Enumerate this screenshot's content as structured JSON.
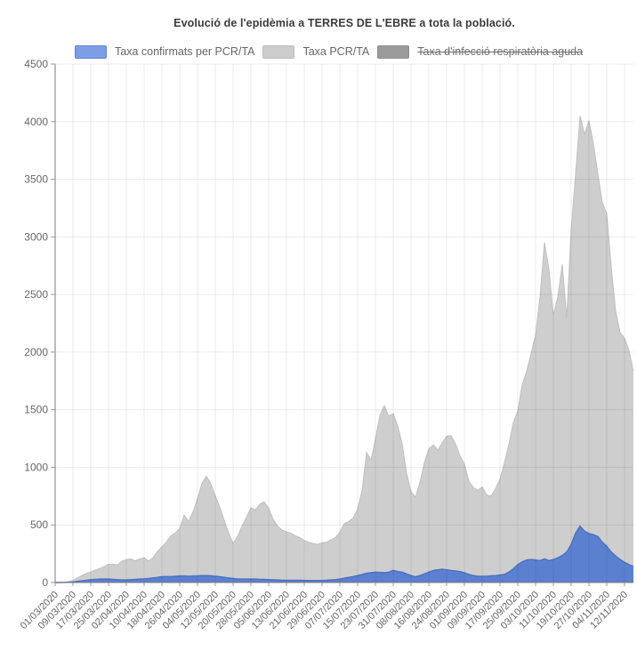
{
  "title": "Evolució de l'epidèmia a TERRES DE L'EBRE a tota la població.",
  "legend": {
    "items": [
      {
        "label": "Taxa confirmats per PCR/TA",
        "swatch_fill": "#7d9ee4",
        "swatch_border": "#5e83d5",
        "disabled": false
      },
      {
        "label": "Taxa PCR/TA",
        "swatch_fill": "#cccccc",
        "swatch_border": "#bdbdbd",
        "disabled": false
      },
      {
        "label": "Taxa d'infecció respiratòria aguda",
        "swatch_fill": "#9b9b9b",
        "swatch_border": "#8e8e8e",
        "disabled": true
      }
    ]
  },
  "chart_data": {
    "type": "area",
    "title": "Evolució de l'epidèmia a TERRES DE L'EBRE a tota la població.",
    "xlabel": "",
    "ylabel": "",
    "ylim": [
      0,
      4500
    ],
    "y_ticks": [
      0,
      500,
      1000,
      1500,
      2000,
      2500,
      3000,
      3500,
      4000,
      4500
    ],
    "grid": true,
    "legend_position": "top",
    "x_tick_labels": [
      "01/03/2020",
      "09/03/2020",
      "17/03/2020",
      "25/03/2020",
      "02/04/2020",
      "10/04/2020",
      "18/04/2020",
      "26/04/2020",
      "04/05/2020",
      "12/05/2020",
      "20/05/2020",
      "28/05/2020",
      "05/06/2020",
      "13/06/2020",
      "21/06/2020",
      "29/06/2020",
      "07/07/2020",
      "15/07/2020",
      "23/07/2020",
      "31/07/2020",
      "08/08/2020",
      "16/08/2020",
      "24/08/2020",
      "01/09/2020",
      "09/09/2020",
      "17/09/2020",
      "25/09/2020",
      "03/10/2020",
      "11/10/2020",
      "19/10/2020",
      "27/10/2020",
      "04/11/2020",
      "12/11/2020"
    ],
    "dates": [
      "01/03",
      "03/03",
      "05/03",
      "07/03",
      "09/03",
      "11/03",
      "13/03",
      "15/03",
      "17/03",
      "19/03",
      "21/03",
      "23/03",
      "25/03",
      "27/03",
      "29/03",
      "31/03",
      "02/04",
      "04/04",
      "06/04",
      "08/04",
      "10/04",
      "12/04",
      "14/04",
      "16/04",
      "18/04",
      "20/04",
      "22/04",
      "24/04",
      "26/04",
      "28/04",
      "30/04",
      "02/05",
      "04/05",
      "06/05",
      "08/05",
      "10/05",
      "12/05",
      "14/05",
      "16/05",
      "18/05",
      "20/05",
      "22/05",
      "24/05",
      "26/05",
      "28/05",
      "30/05",
      "01/06",
      "03/06",
      "05/06",
      "07/06",
      "09/06",
      "11/06",
      "13/06",
      "15/06",
      "17/06",
      "19/06",
      "21/06",
      "23/06",
      "25/06",
      "27/06",
      "29/06",
      "01/07",
      "03/07",
      "05/07",
      "07/07",
      "09/07",
      "11/07",
      "13/07",
      "15/07",
      "17/07",
      "19/07",
      "21/07",
      "23/07",
      "25/07",
      "27/07",
      "29/07",
      "31/07",
      "02/08",
      "04/08",
      "06/08",
      "08/08",
      "10/08",
      "12/08",
      "14/08",
      "16/08",
      "18/08",
      "20/08",
      "22/08",
      "24/08",
      "26/08",
      "28/08",
      "30/08",
      "01/09",
      "03/09",
      "05/09",
      "07/09",
      "09/09",
      "11/09",
      "13/09",
      "15/09",
      "17/09",
      "19/09",
      "21/09",
      "23/09",
      "25/09",
      "27/09",
      "29/09",
      "01/10",
      "03/10",
      "05/10",
      "07/10",
      "09/10",
      "11/10",
      "13/10",
      "15/10",
      "17/10",
      "19/10",
      "21/10",
      "23/10",
      "25/10",
      "27/10",
      "29/10",
      "31/10",
      "02/11",
      "04/11",
      "06/11",
      "08/11",
      "10/11",
      "12/11",
      "14/11",
      "16/11"
    ],
    "series": [
      {
        "name": "Taxa PCR/TA",
        "fill": "#cecece",
        "line": "#c0c0c0",
        "hidden": false,
        "values": [
          0,
          0,
          3,
          8,
          18,
          40,
          60,
          78,
          92,
          108,
          122,
          138,
          158,
          160,
          152,
          185,
          200,
          205,
          188,
          205,
          215,
          188,
          215,
          270,
          310,
          350,
          405,
          430,
          470,
          585,
          530,
          615,
          730,
          860,
          925,
          855,
          755,
          655,
          540,
          430,
          340,
          400,
          490,
          565,
          650,
          630,
          680,
          700,
          645,
          550,
          490,
          455,
          440,
          430,
          405,
          390,
          365,
          350,
          340,
          330,
          345,
          350,
          370,
          390,
          440,
          510,
          530,
          560,
          640,
          800,
          1130,
          1060,
          1250,
          1450,
          1535,
          1445,
          1465,
          1360,
          1205,
          950,
          790,
          740,
          870,
          1040,
          1160,
          1195,
          1150,
          1210,
          1270,
          1275,
          1205,
          1100,
          1030,
          880,
          825,
          800,
          830,
          760,
          750,
          815,
          900,
          1040,
          1200,
          1390,
          1490,
          1720,
          1835,
          1990,
          2150,
          2480,
          2950,
          2720,
          2320,
          2480,
          2760,
          2300,
          3060,
          3550,
          4050,
          3890,
          4010,
          3810,
          3550,
          3300,
          3200,
          2745,
          2355,
          2170,
          2120,
          2015,
          1835
        ]
      },
      {
        "name": "Taxa confirmats per PCR/TA",
        "fill": "#5b80d0",
        "line": "#4a70c2",
        "hidden": false,
        "values": [
          0,
          0,
          1,
          2,
          5,
          10,
          15,
          20,
          25,
          28,
          30,
          30,
          30,
          28,
          25,
          22,
          22,
          25,
          27,
          30,
          32,
          35,
          40,
          45,
          50,
          52,
          52,
          55,
          57,
          57,
          55,
          57,
          58,
          60,
          60,
          58,
          55,
          50,
          45,
          40,
          35,
          32,
          30,
          30,
          30,
          30,
          28,
          27,
          25,
          23,
          22,
          20,
          20,
          20,
          20,
          19,
          18,
          18,
          18,
          18,
          18,
          20,
          22,
          25,
          30,
          38,
          45,
          52,
          60,
          70,
          80,
          85,
          90,
          88,
          85,
          90,
          105,
          95,
          90,
          75,
          60,
          50,
          60,
          75,
          90,
          105,
          110,
          115,
          110,
          105,
          100,
          95,
          85,
          70,
          60,
          55,
          55,
          55,
          58,
          60,
          65,
          70,
          90,
          120,
          155,
          180,
          195,
          200,
          195,
          190,
          205,
          190,
          200,
          215,
          235,
          265,
          330,
          430,
          490,
          445,
          425,
          415,
          400,
          350,
          315,
          265,
          230,
          200,
          175,
          155,
          140
        ]
      },
      {
        "name": "Taxa d'infecció respiratòria aguda",
        "fill": "#9b9b9b",
        "line": "#8e8e8e",
        "hidden": true,
        "values": []
      }
    ]
  },
  "colors": {
    "grid": "rgba(0,0,0,0.08)",
    "axis": "#7a7a7a",
    "tick": "#999999",
    "axis_label": "#666666",
    "title": "#3b3b3b"
  }
}
